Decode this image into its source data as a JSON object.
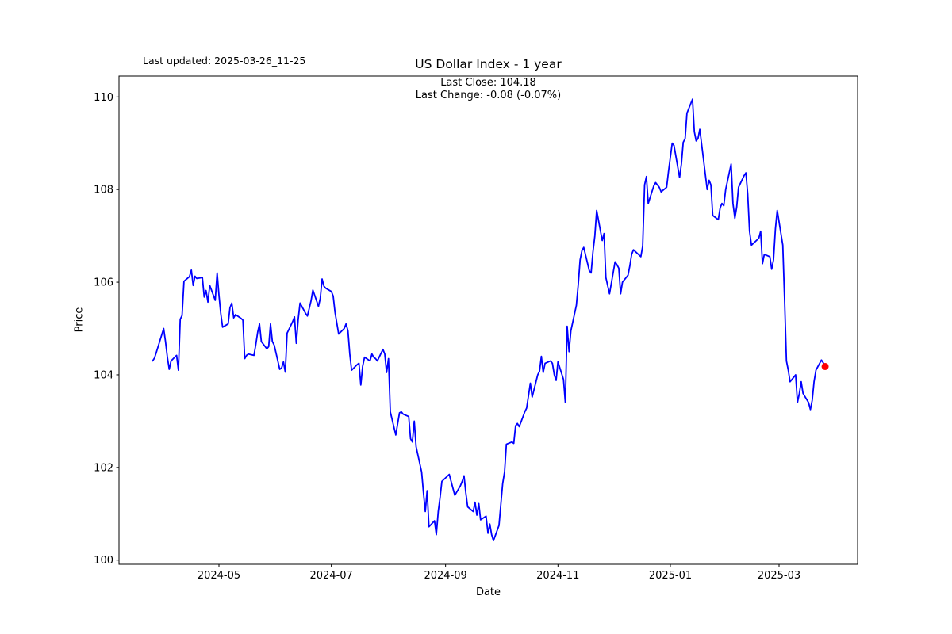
{
  "header": {
    "last_updated": "Last updated: 2025-03-26_11-25",
    "subtitle_line1": "Last Close: 104.18",
    "subtitle_line2": "Last Change: -0.08 (-0.07%)"
  },
  "chart_data": {
    "type": "line",
    "title": "US Dollar Index - 1 year",
    "xlabel": "Date",
    "ylabel": "Price",
    "legend": "none",
    "grid": false,
    "line_color": "#0000ff",
    "last_point_color": "#ff0000",
    "axis_color": "#000000",
    "last_close": 104.18,
    "last_change_text": "-0.08 (-0.07%)",
    "xlim": [
      "2024-03-07T18:00:00Z",
      "2025-04-12T15:00:00Z"
    ],
    "ylim": [
      99.91,
      110.45
    ],
    "x_ticks": [
      {
        "date": "2024-05-01",
        "label": "2024-05"
      },
      {
        "date": "2024-07-01",
        "label": "2024-07"
      },
      {
        "date": "2024-09-01",
        "label": "2024-09"
      },
      {
        "date": "2024-11-01",
        "label": "2024-11"
      },
      {
        "date": "2025-01-01",
        "label": "2025-01"
      },
      {
        "date": "2025-03-01",
        "label": "2025-03"
      }
    ],
    "y_ticks": [
      100,
      102,
      104,
      106,
      108,
      110
    ],
    "series": [
      {
        "name": "US Dollar Index",
        "points": [
          [
            "2024-03-26",
            104.3
          ],
          [
            "2024-03-27",
            104.36
          ],
          [
            "2024-03-28",
            104.48
          ],
          [
            "2024-04-01",
            105.0
          ],
          [
            "2024-04-02",
            104.72
          ],
          [
            "2024-04-03",
            104.38
          ],
          [
            "2024-04-04",
            104.12
          ],
          [
            "2024-04-05",
            104.3
          ],
          [
            "2024-04-08",
            104.42
          ],
          [
            "2024-04-09",
            104.1
          ],
          [
            "2024-04-10",
            105.2
          ],
          [
            "2024-04-11",
            105.28
          ],
          [
            "2024-04-12",
            106.02
          ],
          [
            "2024-04-15",
            106.12
          ],
          [
            "2024-04-16",
            106.26
          ],
          [
            "2024-04-17",
            105.93
          ],
          [
            "2024-04-18",
            106.13
          ],
          [
            "2024-04-19",
            106.08
          ],
          [
            "2024-04-22",
            106.1
          ],
          [
            "2024-04-23",
            105.68
          ],
          [
            "2024-04-24",
            105.82
          ],
          [
            "2024-04-25",
            105.57
          ],
          [
            "2024-04-26",
            105.93
          ],
          [
            "2024-04-29",
            105.61
          ],
          [
            "2024-04-30",
            106.2
          ],
          [
            "2024-05-01",
            105.72
          ],
          [
            "2024-05-02",
            105.32
          ],
          [
            "2024-05-03",
            105.03
          ],
          [
            "2024-05-06",
            105.1
          ],
          [
            "2024-05-07",
            105.45
          ],
          [
            "2024-05-08",
            105.55
          ],
          [
            "2024-05-09",
            105.23
          ],
          [
            "2024-05-10",
            105.3
          ],
          [
            "2024-05-13",
            105.22
          ],
          [
            "2024-05-14",
            105.18
          ],
          [
            "2024-05-15",
            104.35
          ],
          [
            "2024-05-16",
            104.42
          ],
          [
            "2024-05-17",
            104.45
          ],
          [
            "2024-05-20",
            104.42
          ],
          [
            "2024-05-21",
            104.65
          ],
          [
            "2024-05-22",
            104.92
          ],
          [
            "2024-05-23",
            105.1
          ],
          [
            "2024-05-24",
            104.72
          ],
          [
            "2024-05-27",
            104.56
          ],
          [
            "2024-05-28",
            104.61
          ],
          [
            "2024-05-29",
            105.1
          ],
          [
            "2024-05-30",
            104.72
          ],
          [
            "2024-05-31",
            104.64
          ],
          [
            "2024-06-03",
            104.12
          ],
          [
            "2024-06-04",
            104.15
          ],
          [
            "2024-06-05",
            104.28
          ],
          [
            "2024-06-06",
            104.06
          ],
          [
            "2024-06-07",
            104.9
          ],
          [
            "2024-06-10",
            105.15
          ],
          [
            "2024-06-11",
            105.25
          ],
          [
            "2024-06-12",
            104.68
          ],
          [
            "2024-06-13",
            105.2
          ],
          [
            "2024-06-14",
            105.55
          ],
          [
            "2024-06-17",
            105.33
          ],
          [
            "2024-06-18",
            105.27
          ],
          [
            "2024-06-20",
            105.6
          ],
          [
            "2024-06-21",
            105.83
          ],
          [
            "2024-06-24",
            105.48
          ],
          [
            "2024-06-25",
            105.65
          ],
          [
            "2024-06-26",
            106.07
          ],
          [
            "2024-06-27",
            105.91
          ],
          [
            "2024-06-28",
            105.87
          ],
          [
            "2024-07-01",
            105.8
          ],
          [
            "2024-07-02",
            105.7
          ],
          [
            "2024-07-03",
            105.35
          ],
          [
            "2024-07-05",
            104.88
          ],
          [
            "2024-07-08",
            105.0
          ],
          [
            "2024-07-09",
            105.1
          ],
          [
            "2024-07-10",
            104.95
          ],
          [
            "2024-07-11",
            104.45
          ],
          [
            "2024-07-12",
            104.1
          ],
          [
            "2024-07-15",
            104.22
          ],
          [
            "2024-07-16",
            104.25
          ],
          [
            "2024-07-17",
            103.78
          ],
          [
            "2024-07-18",
            104.18
          ],
          [
            "2024-07-19",
            104.38
          ],
          [
            "2024-07-22",
            104.3
          ],
          [
            "2024-07-23",
            104.45
          ],
          [
            "2024-07-24",
            104.38
          ],
          [
            "2024-07-25",
            104.35
          ],
          [
            "2024-07-26",
            104.3
          ],
          [
            "2024-07-29",
            104.55
          ],
          [
            "2024-07-30",
            104.45
          ],
          [
            "2024-07-31",
            104.05
          ],
          [
            "2024-08-01",
            104.35
          ],
          [
            "2024-08-02",
            103.2
          ],
          [
            "2024-08-05",
            102.7
          ],
          [
            "2024-08-06",
            102.95
          ],
          [
            "2024-08-07",
            103.18
          ],
          [
            "2024-08-08",
            103.2
          ],
          [
            "2024-08-09",
            103.15
          ],
          [
            "2024-08-12",
            103.1
          ],
          [
            "2024-08-13",
            102.62
          ],
          [
            "2024-08-14",
            102.55
          ],
          [
            "2024-08-15",
            103.0
          ],
          [
            "2024-08-16",
            102.45
          ],
          [
            "2024-08-19",
            101.9
          ],
          [
            "2024-08-20",
            101.45
          ],
          [
            "2024-08-21",
            101.05
          ],
          [
            "2024-08-22",
            101.5
          ],
          [
            "2024-08-23",
            100.72
          ],
          [
            "2024-08-26",
            100.85
          ],
          [
            "2024-08-27",
            100.55
          ],
          [
            "2024-08-28",
            101.05
          ],
          [
            "2024-08-29",
            101.35
          ],
          [
            "2024-08-30",
            101.7
          ],
          [
            "2024-09-03",
            101.85
          ],
          [
            "2024-09-04",
            101.7
          ],
          [
            "2024-09-06",
            101.4
          ],
          [
            "2024-09-09",
            101.6
          ],
          [
            "2024-09-10",
            101.7
          ],
          [
            "2024-09-11",
            101.82
          ],
          [
            "2024-09-12",
            101.45
          ],
          [
            "2024-09-13",
            101.15
          ],
          [
            "2024-09-16",
            101.05
          ],
          [
            "2024-09-17",
            101.25
          ],
          [
            "2024-09-18",
            100.97
          ],
          [
            "2024-09-19",
            101.22
          ],
          [
            "2024-09-20",
            100.87
          ],
          [
            "2024-09-23",
            100.95
          ],
          [
            "2024-09-24",
            100.58
          ],
          [
            "2024-09-25",
            100.78
          ],
          [
            "2024-09-26",
            100.55
          ],
          [
            "2024-09-27",
            100.42
          ],
          [
            "2024-09-30",
            100.75
          ],
          [
            "2024-10-01",
            101.2
          ],
          [
            "2024-10-02",
            101.65
          ],
          [
            "2024-10-03",
            101.9
          ],
          [
            "2024-10-04",
            102.5
          ],
          [
            "2024-10-07",
            102.55
          ],
          [
            "2024-10-08",
            102.52
          ],
          [
            "2024-10-09",
            102.9
          ],
          [
            "2024-10-10",
            102.95
          ],
          [
            "2024-10-11",
            102.88
          ],
          [
            "2024-10-14",
            103.2
          ],
          [
            "2024-10-15",
            103.28
          ],
          [
            "2024-10-16",
            103.55
          ],
          [
            "2024-10-17",
            103.82
          ],
          [
            "2024-10-18",
            103.52
          ],
          [
            "2024-10-21",
            104.0
          ],
          [
            "2024-10-22",
            104.08
          ],
          [
            "2024-10-23",
            104.4
          ],
          [
            "2024-10-24",
            104.05
          ],
          [
            "2024-10-25",
            104.25
          ],
          [
            "2024-10-28",
            104.3
          ],
          [
            "2024-10-29",
            104.25
          ],
          [
            "2024-10-30",
            104.0
          ],
          [
            "2024-10-31",
            103.88
          ],
          [
            "2024-11-01",
            104.28
          ],
          [
            "2024-11-04",
            103.9
          ],
          [
            "2024-11-05",
            103.4
          ],
          [
            "2024-11-06",
            105.05
          ],
          [
            "2024-11-07",
            104.5
          ],
          [
            "2024-11-08",
            104.95
          ],
          [
            "2024-11-11",
            105.5
          ],
          [
            "2024-11-12",
            105.95
          ],
          [
            "2024-11-13",
            106.48
          ],
          [
            "2024-11-14",
            106.68
          ],
          [
            "2024-11-15",
            106.75
          ],
          [
            "2024-11-18",
            106.25
          ],
          [
            "2024-11-19",
            106.2
          ],
          [
            "2024-11-20",
            106.65
          ],
          [
            "2024-11-21",
            107.0
          ],
          [
            "2024-11-22",
            107.55
          ],
          [
            "2024-11-25",
            106.9
          ],
          [
            "2024-11-26",
            107.05
          ],
          [
            "2024-11-27",
            106.1
          ],
          [
            "2024-11-29",
            105.75
          ],
          [
            "2024-12-02",
            106.44
          ],
          [
            "2024-12-03",
            106.38
          ],
          [
            "2024-12-04",
            106.3
          ],
          [
            "2024-12-05",
            105.75
          ],
          [
            "2024-12-06",
            106.0
          ],
          [
            "2024-12-09",
            106.15
          ],
          [
            "2024-12-10",
            106.35
          ],
          [
            "2024-12-11",
            106.6
          ],
          [
            "2024-12-12",
            106.7
          ],
          [
            "2024-12-16",
            106.55
          ],
          [
            "2024-12-17",
            106.78
          ],
          [
            "2024-12-18",
            108.1
          ],
          [
            "2024-12-19",
            108.28
          ],
          [
            "2024-12-20",
            107.7
          ],
          [
            "2024-12-23",
            108.08
          ],
          [
            "2024-12-24",
            108.15
          ],
          [
            "2024-12-26",
            108.05
          ],
          [
            "2024-12-27",
            107.95
          ],
          [
            "2024-12-30",
            108.05
          ],
          [
            "2024-12-31",
            108.4
          ],
          [
            "2025-01-02",
            109.0
          ],
          [
            "2025-01-03",
            108.95
          ],
          [
            "2025-01-06",
            108.26
          ],
          [
            "2025-01-07",
            108.55
          ],
          [
            "2025-01-08",
            109.02
          ],
          [
            "2025-01-09",
            109.1
          ],
          [
            "2025-01-10",
            109.65
          ],
          [
            "2025-01-13",
            109.95
          ],
          [
            "2025-01-14",
            109.25
          ],
          [
            "2025-01-15",
            109.05
          ],
          [
            "2025-01-16",
            109.1
          ],
          [
            "2025-01-17",
            109.3
          ],
          [
            "2025-01-21",
            108.0
          ],
          [
            "2025-01-22",
            108.2
          ],
          [
            "2025-01-23",
            108.1
          ],
          [
            "2025-01-24",
            107.44
          ],
          [
            "2025-01-27",
            107.35
          ],
          [
            "2025-01-28",
            107.6
          ],
          [
            "2025-01-29",
            107.7
          ],
          [
            "2025-01-30",
            107.65
          ],
          [
            "2025-01-31",
            108.0
          ],
          [
            "2025-02-03",
            108.55
          ],
          [
            "2025-02-04",
            107.7
          ],
          [
            "2025-02-05",
            107.38
          ],
          [
            "2025-02-06",
            107.62
          ],
          [
            "2025-02-07",
            108.05
          ],
          [
            "2025-02-10",
            108.3
          ],
          [
            "2025-02-11",
            108.36
          ],
          [
            "2025-02-12",
            107.9
          ],
          [
            "2025-02-13",
            107.1
          ],
          [
            "2025-02-14",
            106.8
          ],
          [
            "2025-02-18",
            106.95
          ],
          [
            "2025-02-19",
            107.1
          ],
          [
            "2025-02-20",
            106.4
          ],
          [
            "2025-02-21",
            106.6
          ],
          [
            "2025-02-24",
            106.55
          ],
          [
            "2025-02-25",
            106.28
          ],
          [
            "2025-02-26",
            106.48
          ],
          [
            "2025-02-27",
            107.15
          ],
          [
            "2025-02-28",
            107.55
          ],
          [
            "2025-03-03",
            106.8
          ],
          [
            "2025-03-04",
            105.6
          ],
          [
            "2025-03-05",
            104.3
          ],
          [
            "2025-03-06",
            104.1
          ],
          [
            "2025-03-07",
            103.85
          ],
          [
            "2025-03-10",
            104.0
          ],
          [
            "2025-03-11",
            103.4
          ],
          [
            "2025-03-12",
            103.6
          ],
          [
            "2025-03-13",
            103.85
          ],
          [
            "2025-03-14",
            103.6
          ],
          [
            "2025-03-17",
            103.4
          ],
          [
            "2025-03-18",
            103.25
          ],
          [
            "2025-03-19",
            103.45
          ],
          [
            "2025-03-20",
            103.85
          ],
          [
            "2025-03-21",
            104.1
          ],
          [
            "2025-03-24",
            104.32
          ],
          [
            "2025-03-25",
            104.26
          ],
          [
            "2025-03-26",
            104.18
          ]
        ]
      }
    ]
  }
}
